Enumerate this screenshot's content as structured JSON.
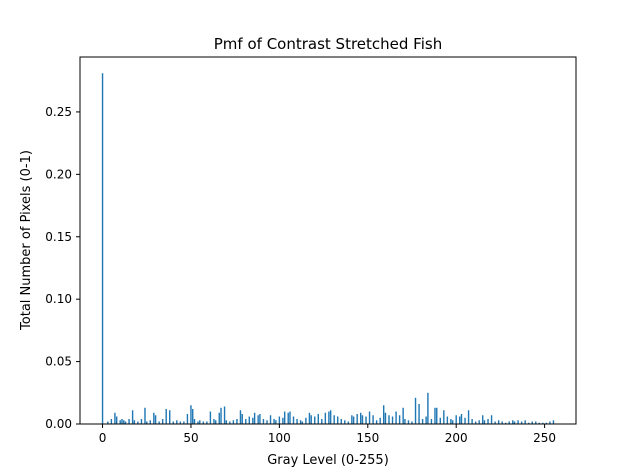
{
  "chart_data": {
    "type": "bar",
    "title": "Pmf of Contrast Stretched Fish",
    "xlabel": "Gray Level (0-255)",
    "ylabel": "Total Number of Pixels (0-1)",
    "xlim": [
      -12.75,
      267.75
    ],
    "ylim": [
      0,
      0.294
    ],
    "xticks": [
      0,
      50,
      100,
      150,
      200,
      250
    ],
    "xtick_labels": [
      "0",
      "50",
      "100",
      "150",
      "200",
      "250"
    ],
    "yticks": [
      0,
      0.05,
      0.1,
      0.15,
      0.2,
      0.25
    ],
    "ytick_labels": [
      "0.00",
      "0.05",
      "0.10",
      "0.15",
      "0.20",
      "0.25"
    ],
    "bar_color": "#1f77b4",
    "x": [
      0,
      3,
      5,
      7,
      8,
      10,
      11,
      12,
      13,
      15,
      17,
      18,
      20,
      22,
      24,
      25,
      27,
      29,
      30,
      32,
      34,
      36,
      38,
      40,
      42,
      44,
      46,
      48,
      50,
      51,
      52,
      54,
      55,
      57,
      59,
      61,
      63,
      64,
      66,
      67,
      69,
      70,
      72,
      74,
      76,
      78,
      79,
      81,
      83,
      85,
      86,
      88,
      89,
      91,
      93,
      95,
      97,
      98,
      100,
      102,
      103,
      105,
      106,
      108,
      110,
      112,
      113,
      115,
      117,
      118,
      120,
      122,
      124,
      126,
      128,
      129,
      131,
      133,
      135,
      137,
      139,
      141,
      142,
      144,
      146,
      147,
      149,
      151,
      153,
      155,
      157,
      159,
      160,
      162,
      164,
      166,
      168,
      170,
      171,
      173,
      175,
      177,
      179,
      181,
      183,
      184,
      186,
      188,
      189,
      191,
      193,
      195,
      197,
      198,
      200,
      202,
      203,
      205,
      207,
      209,
      211,
      213,
      215,
      216,
      218,
      220,
      222,
      224,
      226,
      228,
      230,
      232,
      233,
      235,
      237,
      239,
      241,
      243,
      245,
      247,
      249,
      251,
      253,
      255
    ],
    "values": [
      0.281,
      0.002,
      0.004,
      0.009,
      0.006,
      0.003,
      0.004,
      0.003,
      0.002,
      0.004,
      0.011,
      0.003,
      0.002,
      0.004,
      0.013,
      0.002,
      0.003,
      0.009,
      0.007,
      0.002,
      0.004,
      0.012,
      0.011,
      0.002,
      0.003,
      0.002,
      0.002,
      0.008,
      0.015,
      0.012,
      0.004,
      0.002,
      0.003,
      0.002,
      0.002,
      0.01,
      0.004,
      0.003,
      0.009,
      0.013,
      0.014,
      0.003,
      0.002,
      0.003,
      0.004,
      0.011,
      0.008,
      0.004,
      0.006,
      0.005,
      0.009,
      0.007,
      0.008,
      0.004,
      0.003,
      0.007,
      0.004,
      0.003,
      0.006,
      0.005,
      0.01,
      0.009,
      0.01,
      0.006,
      0.004,
      0.003,
      0.002,
      0.005,
      0.009,
      0.007,
      0.006,
      0.008,
      0.004,
      0.009,
      0.01,
      0.011,
      0.007,
      0.006,
      0.004,
      0.003,
      0.002,
      0.007,
      0.006,
      0.008,
      0.009,
      0.007,
      0.006,
      0.01,
      0.007,
      0.003,
      0.005,
      0.015,
      0.009,
      0.007,
      0.006,
      0.01,
      0.007,
      0.013,
      0.004,
      0.003,
      0.002,
      0.021,
      0.016,
      0.004,
      0.006,
      0.025,
      0.004,
      0.013,
      0.013,
      0.005,
      0.011,
      0.006,
      0.004,
      0.003,
      0.007,
      0.006,
      0.008,
      0.005,
      0.011,
      0.004,
      0.002,
      0.003,
      0.007,
      0.003,
      0.004,
      0.007,
      0.002,
      0.003,
      0.002,
      0.001,
      0.002,
      0.003,
      0.002,
      0.003,
      0.002,
      0.003,
      0.001,
      0.002,
      0.002,
      0.001,
      0.001,
      0.001,
      0.002,
      0.003
    ],
    "grid": false,
    "legend": "none"
  }
}
